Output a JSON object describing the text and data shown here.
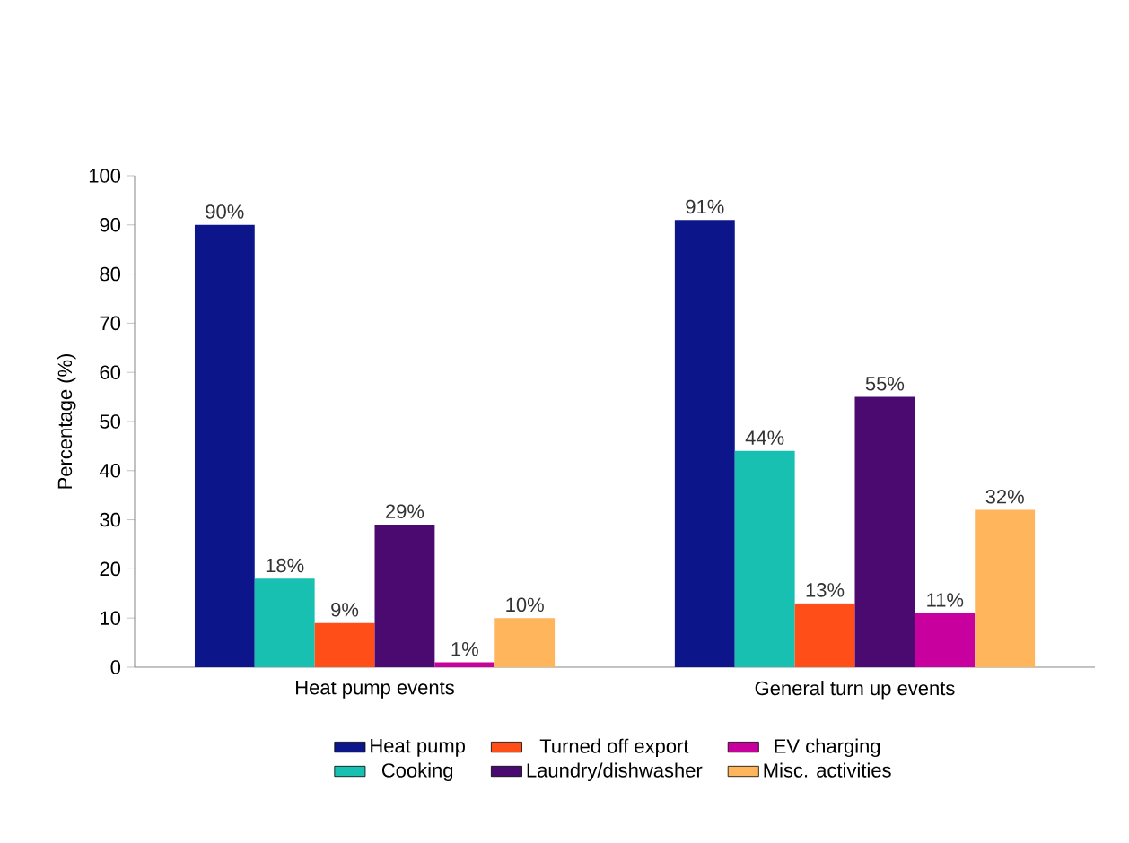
{
  "chart_data": {
    "type": "bar",
    "categories": [
      "Heat pump events",
      "General turn up events"
    ],
    "ylabel": "Percentage (%)",
    "ylim": [
      0,
      100
    ],
    "yticks": [
      0,
      10,
      20,
      30,
      40,
      50,
      60,
      70,
      80,
      90,
      100
    ],
    "legend": "bottom",
    "grid": false,
    "series": [
      {
        "name": "Heat pump",
        "color": "#0c168a",
        "values": [
          90,
          91
        ],
        "value_labels": [
          "90%",
          "91%"
        ]
      },
      {
        "name": "Cooking",
        "color": "#17c0b0",
        "values": [
          18,
          44
        ],
        "value_labels": [
          "18%",
          "44%"
        ]
      },
      {
        "name": "Turned off export",
        "color": "#ff4e17",
        "values": [
          9,
          13
        ],
        "value_labels": [
          "9%",
          "13%"
        ]
      },
      {
        "name": "Laundry/dishwasher",
        "color": "#4a0a70",
        "values": [
          29,
          55
        ],
        "value_labels": [
          "29%",
          "55%"
        ]
      },
      {
        "name": "EV charging",
        "color": "#c8009e",
        "values": [
          1,
          11
        ],
        "value_labels": [
          "1%",
          "11%"
        ]
      },
      {
        "name": "Misc. activities",
        "color": "#ffb55c",
        "values": [
          10,
          32
        ],
        "value_labels": [
          "10%",
          "32%"
        ]
      }
    ]
  }
}
